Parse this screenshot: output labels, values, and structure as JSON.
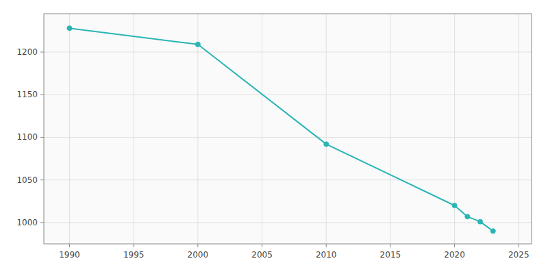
{
  "chart_data": {
    "type": "line",
    "x": [
      1990,
      2000,
      2010,
      2020,
      2021,
      2022,
      2023
    ],
    "values": [
      1228,
      1209,
      1092,
      1020,
      1007,
      1001,
      990
    ],
    "color": "#2ab5b5",
    "marker": "circle",
    "xlim": [
      1988,
      2026
    ],
    "ylim": [
      975,
      1245
    ],
    "xticks": [
      1990,
      1995,
      2000,
      2005,
      2010,
      2015,
      2020,
      2025
    ],
    "yticks": [
      1000,
      1050,
      1100,
      1150,
      1200
    ],
    "grid": true
  }
}
